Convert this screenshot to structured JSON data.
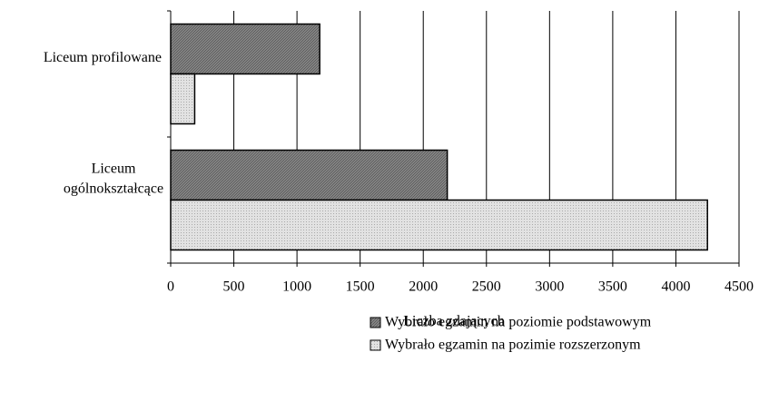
{
  "chart_data": {
    "type": "bar",
    "orientation": "horizontal",
    "categories": [
      "Liceum profilowane",
      "Liceum ogólnokształcące"
    ],
    "series": [
      {
        "name": "Wybrało egzamin na poziomie podstawowym",
        "color": "#8c8c8c",
        "values": [
          1180,
          2190
        ]
      },
      {
        "name": "Wybrało egzamin na pozimie rozszerzonym",
        "color": "#e2e2e2",
        "values": [
          190,
          4250
        ]
      }
    ],
    "xlabel": "Liczba zdających",
    "xlim": [
      0,
      4500
    ],
    "xticks": [
      0,
      500,
      1000,
      1500,
      2000,
      2500,
      3000,
      3500,
      4000,
      4500
    ],
    "grid": true,
    "legend": "bottom-right"
  }
}
